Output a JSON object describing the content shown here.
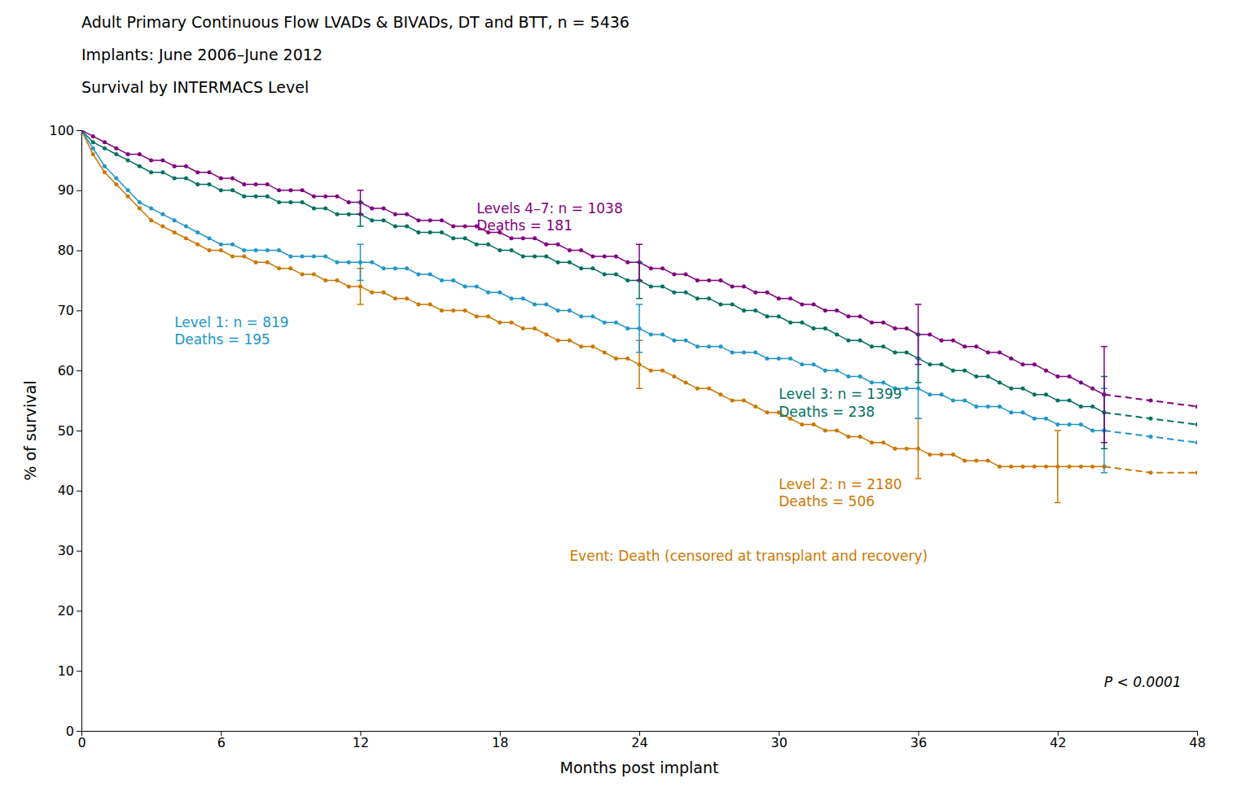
{
  "chart_data": {
    "type": "line",
    "title": "Adult Primary Continuous Flow LVADs & BIVADs, DT and BTT, n = 5436",
    "subtitle": [
      "Implants: June 2006–June 2012",
      "Survival by INTERMACS Level"
    ],
    "xlabel": "Months post implant",
    "ylabel": "% of survival",
    "xlim": [
      0,
      48
    ],
    "ylim": [
      0,
      100
    ],
    "xticks": [
      0,
      6,
      12,
      18,
      24,
      30,
      36,
      42,
      48
    ],
    "yticks": [
      0,
      10,
      20,
      30,
      40,
      50,
      60,
      70,
      80,
      90,
      100
    ],
    "grid": false,
    "series": [
      {
        "color": "#CC7700",
        "line_style": "solid",
        "marker": "circle",
        "x": [
          0,
          0.5,
          1,
          1.5,
          2,
          2.5,
          3,
          3.5,
          4,
          4.5,
          5,
          5.5,
          6,
          6.5,
          7,
          7.5,
          8,
          8.5,
          9,
          9.5,
          10,
          10.5,
          11,
          11.5,
          12,
          12.5,
          13,
          13.5,
          14,
          14.5,
          15,
          15.5,
          16,
          16.5,
          17,
          17.5,
          18,
          18.5,
          19,
          19.5,
          20,
          20.5,
          21,
          21.5,
          22,
          22.5,
          23,
          23.5,
          24,
          24.5,
          25,
          25.5,
          26,
          26.5,
          27,
          27.5,
          28,
          28.5,
          29,
          29.5,
          30,
          30.5,
          31,
          31.5,
          32,
          32.5,
          33,
          33.5,
          34,
          34.5,
          35,
          35.5,
          36,
          36.5,
          37,
          37.5,
          38,
          38.5,
          39,
          39.5,
          40,
          40.5,
          41,
          41.5,
          42,
          42.5,
          43,
          43.5,
          44
        ],
        "values": [
          100,
          96,
          93,
          91,
          89,
          87,
          85,
          84,
          83,
          82,
          81,
          80,
          80,
          79,
          79,
          78,
          78,
          77,
          77,
          76,
          76,
          75,
          75,
          74,
          74,
          73,
          73,
          72,
          72,
          71,
          71,
          70,
          70,
          70,
          69,
          69,
          68,
          68,
          67,
          67,
          66,
          65,
          65,
          64,
          64,
          63,
          62,
          62,
          61,
          60,
          60,
          59,
          58,
          57,
          57,
          56,
          55,
          55,
          54,
          53,
          53,
          52,
          51,
          51,
          50,
          50,
          49,
          49,
          48,
          48,
          47,
          47,
          47,
          46,
          46,
          46,
          45,
          45,
          45,
          44,
          44,
          44,
          44,
          44,
          44,
          44,
          44,
          44,
          44
        ],
        "error_bars": {
          "x": [
            12,
            24,
            36,
            42
          ],
          "values": [
            74,
            61,
            47,
            44
          ],
          "minus": [
            3,
            4,
            5,
            6
          ],
          "plus": [
            3,
            4,
            5,
            6
          ]
        }
      },
      {
        "color": "#CC7700",
        "line_style": "dashed",
        "marker": "circle",
        "x": [
          44,
          46,
          48
        ],
        "values": [
          44,
          43,
          43
        ]
      },
      {
        "color": "#2196C8",
        "line_style": "solid",
        "marker": "circle",
        "x": [
          0,
          0.5,
          1,
          1.5,
          2,
          2.5,
          3,
          3.5,
          4,
          4.5,
          5,
          5.5,
          6,
          6.5,
          7,
          7.5,
          8,
          8.5,
          9,
          9.5,
          10,
          10.5,
          11,
          11.5,
          12,
          12.5,
          13,
          13.5,
          14,
          14.5,
          15,
          15.5,
          16,
          16.5,
          17,
          17.5,
          18,
          18.5,
          19,
          19.5,
          20,
          20.5,
          21,
          21.5,
          22,
          22.5,
          23,
          23.5,
          24,
          24.5,
          25,
          25.5,
          26,
          26.5,
          27,
          27.5,
          28,
          28.5,
          29,
          29.5,
          30,
          30.5,
          31,
          31.5,
          32,
          32.5,
          33,
          33.5,
          34,
          34.5,
          35,
          35.5,
          36,
          36.5,
          37,
          37.5,
          38,
          38.5,
          39,
          39.5,
          40,
          40.5,
          41,
          41.5,
          42,
          42.5,
          43,
          43.5,
          44
        ],
        "values": [
          100,
          97,
          94,
          92,
          90,
          88,
          87,
          86,
          85,
          84,
          83,
          82,
          81,
          81,
          80,
          80,
          80,
          80,
          79,
          79,
          79,
          79,
          78,
          78,
          78,
          78,
          77,
          77,
          77,
          76,
          76,
          75,
          75,
          74,
          74,
          73,
          73,
          72,
          72,
          71,
          71,
          70,
          70,
          69,
          69,
          68,
          68,
          67,
          67,
          66,
          66,
          65,
          65,
          64,
          64,
          64,
          63,
          63,
          63,
          62,
          62,
          62,
          61,
          61,
          60,
          60,
          59,
          59,
          58,
          58,
          57,
          57,
          57,
          56,
          56,
          55,
          55,
          54,
          54,
          54,
          53,
          53,
          52,
          52,
          51,
          51,
          51,
          50,
          50
        ],
        "error_bars": {
          "x": [
            12,
            24,
            36,
            44
          ],
          "values": [
            78,
            67,
            57,
            50
          ],
          "minus": [
            3,
            4,
            5,
            7
          ],
          "plus": [
            3,
            4,
            5,
            7
          ]
        }
      },
      {
        "color": "#2196C8",
        "line_style": "dashed",
        "marker": "circle",
        "x": [
          44,
          46,
          48
        ],
        "values": [
          50,
          49,
          48
        ]
      },
      {
        "color": "#007060",
        "line_style": "solid",
        "marker": "circle",
        "x": [
          0,
          0.5,
          1,
          1.5,
          2,
          2.5,
          3,
          3.5,
          4,
          4.5,
          5,
          5.5,
          6,
          6.5,
          7,
          7.5,
          8,
          8.5,
          9,
          9.5,
          10,
          10.5,
          11,
          11.5,
          12,
          12.5,
          13,
          13.5,
          14,
          14.5,
          15,
          15.5,
          16,
          16.5,
          17,
          17.5,
          18,
          18.5,
          19,
          19.5,
          20,
          20.5,
          21,
          21.5,
          22,
          22.5,
          23,
          23.5,
          24,
          24.5,
          25,
          25.5,
          26,
          26.5,
          27,
          27.5,
          28,
          28.5,
          29,
          29.5,
          30,
          30.5,
          31,
          31.5,
          32,
          32.5,
          33,
          33.5,
          34,
          34.5,
          35,
          35.5,
          36,
          36.5,
          37,
          37.5,
          38,
          38.5,
          39,
          39.5,
          40,
          40.5,
          41,
          41.5,
          42,
          42.5,
          43,
          43.5,
          44
        ],
        "values": [
          100,
          98,
          97,
          96,
          95,
          94,
          93,
          93,
          92,
          92,
          91,
          91,
          90,
          90,
          89,
          89,
          89,
          88,
          88,
          88,
          87,
          87,
          86,
          86,
          86,
          85,
          85,
          84,
          84,
          83,
          83,
          83,
          82,
          82,
          81,
          81,
          80,
          80,
          79,
          79,
          79,
          78,
          78,
          77,
          77,
          76,
          76,
          75,
          75,
          74,
          74,
          73,
          73,
          72,
          72,
          71,
          71,
          70,
          70,
          69,
          69,
          68,
          68,
          67,
          67,
          66,
          65,
          65,
          64,
          64,
          63,
          63,
          62,
          61,
          61,
          60,
          60,
          59,
          59,
          58,
          57,
          57,
          56,
          56,
          55,
          55,
          54,
          54,
          53
        ],
        "error_bars": {
          "x": [
            12,
            24,
            36,
            44
          ],
          "values": [
            86,
            75,
            62,
            53
          ],
          "minus": [
            2,
            3,
            4,
            6
          ],
          "plus": [
            2,
            3,
            4,
            6
          ]
        }
      },
      {
        "color": "#007060",
        "line_style": "dashed",
        "marker": "circle",
        "x": [
          44,
          46,
          48
        ],
        "values": [
          53,
          52,
          51
        ]
      },
      {
        "color": "#800080",
        "line_style": "solid",
        "marker": "circle",
        "x": [
          0,
          0.5,
          1,
          1.5,
          2,
          2.5,
          3,
          3.5,
          4,
          4.5,
          5,
          5.5,
          6,
          6.5,
          7,
          7.5,
          8,
          8.5,
          9,
          9.5,
          10,
          10.5,
          11,
          11.5,
          12,
          12.5,
          13,
          13.5,
          14,
          14.5,
          15,
          15.5,
          16,
          16.5,
          17,
          17.5,
          18,
          18.5,
          19,
          19.5,
          20,
          20.5,
          21,
          21.5,
          22,
          22.5,
          23,
          23.5,
          24,
          24.5,
          25,
          25.5,
          26,
          26.5,
          27,
          27.5,
          28,
          28.5,
          29,
          29.5,
          30,
          30.5,
          31,
          31.5,
          32,
          32.5,
          33,
          33.5,
          34,
          34.5,
          35,
          35.5,
          36,
          36.5,
          37,
          37.5,
          38,
          38.5,
          39,
          39.5,
          40,
          40.5,
          41,
          41.5,
          42,
          42.5,
          43,
          43.5,
          44
        ],
        "values": [
          100,
          99,
          98,
          97,
          96,
          96,
          95,
          95,
          94,
          94,
          93,
          93,
          92,
          92,
          91,
          91,
          91,
          90,
          90,
          90,
          89,
          89,
          89,
          88,
          88,
          87,
          87,
          86,
          86,
          85,
          85,
          85,
          84,
          84,
          84,
          83,
          83,
          82,
          82,
          82,
          81,
          81,
          80,
          80,
          79,
          79,
          79,
          78,
          78,
          77,
          77,
          76,
          76,
          75,
          75,
          75,
          74,
          74,
          73,
          73,
          72,
          72,
          71,
          71,
          70,
          70,
          69,
          69,
          68,
          68,
          67,
          67,
          66,
          66,
          65,
          65,
          64,
          64,
          63,
          63,
          62,
          61,
          61,
          60,
          59,
          59,
          58,
          57,
          56
        ],
        "error_bars": {
          "x": [
            12,
            24,
            36,
            44
          ],
          "values": [
            88,
            78,
            66,
            56
          ],
          "minus": [
            2,
            3,
            5,
            8
          ],
          "plus": [
            2,
            3,
            5,
            8
          ]
        }
      },
      {
        "color": "#800080",
        "line_style": "dashed",
        "marker": "circle",
        "x": [
          44,
          46,
          48
        ],
        "values": [
          56,
          55,
          54
        ]
      }
    ],
    "annotations": [
      {
        "text": "Level 1: n = 819\nDeaths = 195",
        "x": 4.0,
        "y": 69.0,
        "color": "#2196C8"
      },
      {
        "text": "Levels 4–7: n = 1038\nDeaths = 181",
        "x": 17.0,
        "y": 88.0,
        "color": "#800080"
      },
      {
        "text": "Level 3: n = 1399\nDeaths = 238",
        "x": 30.0,
        "y": 57.0,
        "color": "#007060"
      },
      {
        "text": "Level 2: n = 2180\nDeaths = 506",
        "x": 30.0,
        "y": 42.0,
        "color": "#CC7700"
      }
    ],
    "event_text": {
      "text": "Event: Death (censored at transplant and recovery)",
      "x": 21.0,
      "y": 29.0,
      "color": "#CC7700"
    },
    "pvalue_text": {
      "text": "P < 0.0001",
      "x": 44.0,
      "y": 8.0
    }
  }
}
